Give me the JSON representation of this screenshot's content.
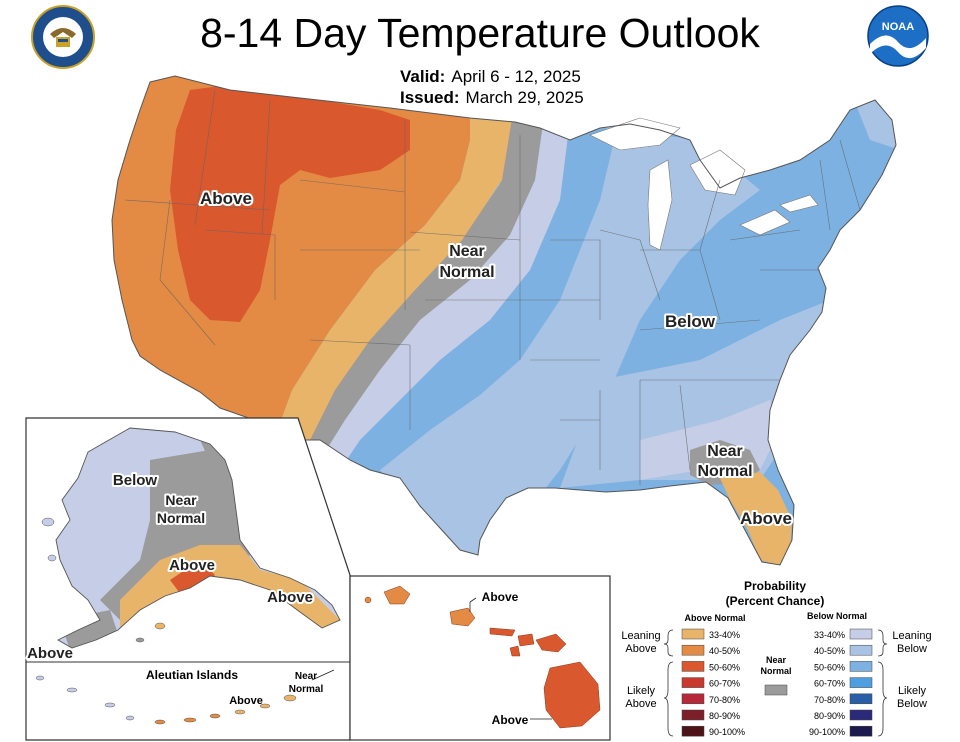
{
  "header": {
    "title": "8-14 Day Temperature Outlook",
    "valid_label": "Valid:",
    "valid_value": "April 6 - 12, 2025",
    "issued_label": "Issued:",
    "issued_value": "March 29, 2025"
  },
  "logos": {
    "left": {
      "name": "department-of-commerce-seal",
      "text_top": "DEPARTMENT OF COMMERCE",
      "text_bottom": "UNITED STATES OF AMERICA"
    },
    "right": {
      "name": "noaa-logo",
      "text": "NOAA"
    }
  },
  "map_labels": {
    "conus_above_west": "Above",
    "conus_near_normal_1": "Near",
    "conus_near_normal_2": "Normal",
    "conus_below": "Below",
    "conus_near_normal_se_1": "Near",
    "conus_near_normal_se_2": "Normal",
    "conus_above_florida": "Above",
    "alaska_below": "Below",
    "alaska_near_1": "Near",
    "alaska_near_2": "Normal",
    "alaska_above_south": "Above",
    "alaska_above_panhandle": "Above",
    "alaska_above_west": "Above",
    "aleutian_title": "Aleutian Islands",
    "aleutian_above": "Above",
    "aleutian_near_1": "Near",
    "aleutian_near_2": "Normal",
    "hawaii_above_north": "Above",
    "hawaii_above_south": "Above"
  },
  "legend": {
    "title_1": "Probability",
    "title_2": "(Percent Chance)",
    "above_header": "Above Normal",
    "below_header": "Below Normal",
    "near_label_1": "Near",
    "near_label_2": "Normal",
    "leaning_above_1": "Leaning",
    "leaning_above_2": "Above",
    "likely_above_1": "Likely",
    "likely_above_2": "Above",
    "leaning_below_1": "Leaning",
    "leaning_below_2": "Below",
    "likely_below_1": "Likely",
    "likely_below_2": "Below",
    "above_bins": [
      {
        "label": "33-40%",
        "color": "#e8b46a"
      },
      {
        "label": "40-50%",
        "color": "#e38a44"
      },
      {
        "label": "50-60%",
        "color": "#d9582e"
      },
      {
        "label": "60-70%",
        "color": "#c93a2e"
      },
      {
        "label": "70-80%",
        "color": "#b52a3a"
      },
      {
        "label": "80-90%",
        "color": "#7d1f28"
      },
      {
        "label": "90-100%",
        "color": "#4d1418"
      }
    ],
    "below_bins": [
      {
        "label": "33-40%",
        "color": "#c6cde6"
      },
      {
        "label": "40-50%",
        "color": "#a8c3e4"
      },
      {
        "label": "50-60%",
        "color": "#7cb1e1"
      },
      {
        "label": "60-70%",
        "color": "#4f9ee0"
      },
      {
        "label": "70-80%",
        "color": "#2a5fa8"
      },
      {
        "label": "80-90%",
        "color": "#2b2a7a"
      },
      {
        "label": "90-100%",
        "color": "#1d1a4d"
      }
    ],
    "near_color": "#9b9b9b"
  }
}
